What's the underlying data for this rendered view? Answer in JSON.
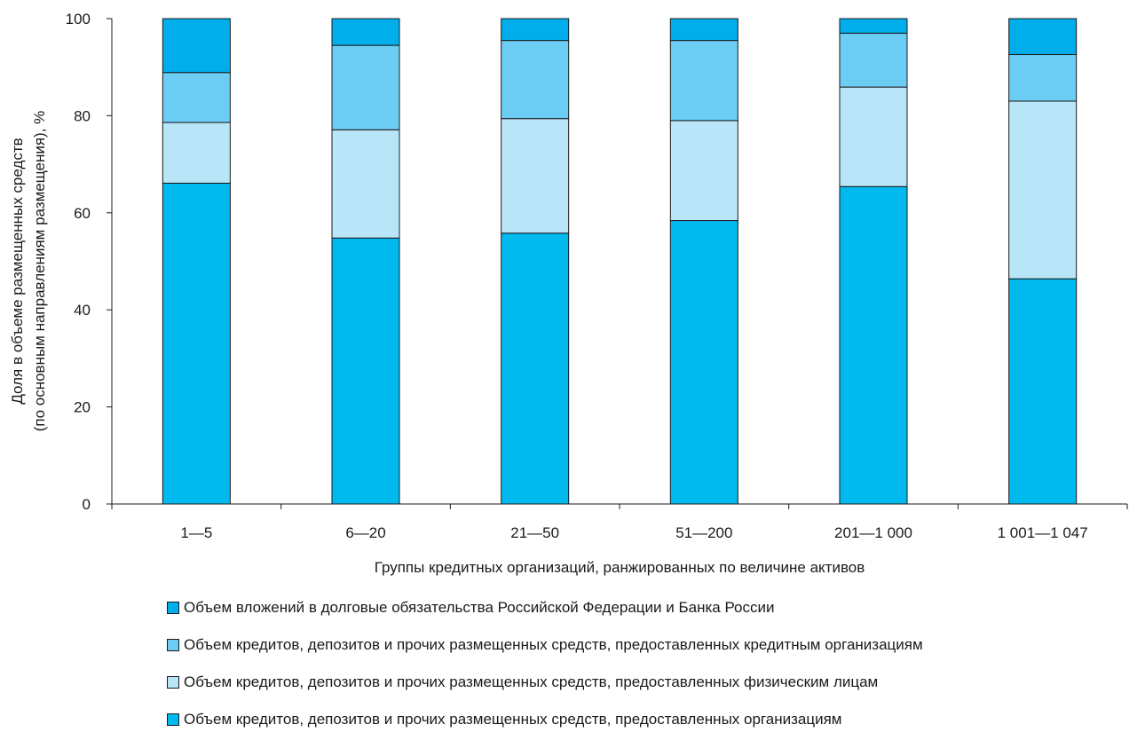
{
  "chart_data": {
    "type": "bar",
    "stacked": true,
    "categories": [
      "1—5",
      "6—20",
      "21—50",
      "51—200",
      "201—1 000",
      "1 001—1 047"
    ],
    "series": [
      {
        "name": "Объем кредитов, депозитов и прочих размещенных средств, предоставленных организациям",
        "color": "#00B9EF",
        "values": [
          66.1,
          54.8,
          55.8,
          58.4,
          65.4,
          46.4
        ]
      },
      {
        "name": "Объем кредитов, депозитов и прочих размещенных средств, предоставленных физическим лицам",
        "color": "#B9E5F9",
        "values": [
          12.5,
          22.3,
          23.6,
          20.6,
          20.5,
          36.6
        ]
      },
      {
        "name": "Объем кредитов, депозитов и прочих размещенных средств, предоставленных кредитным организациям",
        "color": "#6CCDF4",
        "values": [
          10.3,
          17.4,
          16.1,
          16.5,
          11.1,
          9.6
        ]
      },
      {
        "name": "Объем вложений в  долговые обязательства Российской Федерации и Банка России",
        "color": "#00AEEB",
        "values": [
          11.1,
          5.5,
          4.5,
          4.5,
          3.0,
          7.4
        ]
      }
    ],
    "ylabel_line1": "Доля в объеме размещенных средств",
    "ylabel_line2": "(по основным направлениям размещения), %",
    "xlabel": "Группы кредитных организаций, ранжированных по величине активов",
    "ylim": [
      0,
      100
    ],
    "yticks": [
      0,
      20,
      40,
      60,
      80,
      100
    ],
    "legend_order": [
      3,
      2,
      1,
      0
    ],
    "legend_position": "bottom",
    "grid": false
  }
}
